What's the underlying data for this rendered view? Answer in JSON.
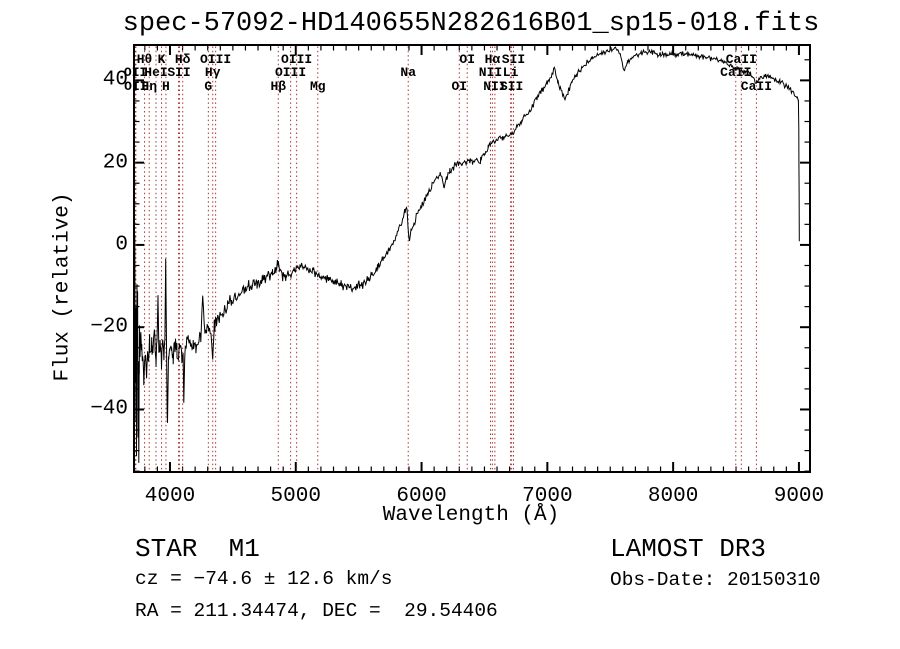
{
  "annotations": {
    "classification": "STAR  M1",
    "survey": "LAMOST DR3",
    "cz": "cz = −74.6 ± 12.6 km/s",
    "obs_date": "Obs-Date: 20150310",
    "ra_dec": "RA = 211.34474, DEC =  29.54406"
  },
  "chart_data": {
    "type": "line",
    "title": "spec-57092-HD140655N282616B01_sp15-018.fits",
    "xlabel": "Wavelength (Å)",
    "ylabel": "Flux (relative)",
    "xlim": [
      3714,
      9088
    ],
    "ylim": [
      -55.2,
      48.6
    ],
    "x_major_ticks": [
      4000,
      5000,
      6000,
      7000,
      8000,
      9000
    ],
    "x_minor_step": 100,
    "y_major_ticks": [
      -40,
      -20,
      0,
      20,
      40
    ],
    "y_tick_labels": [
      "−40",
      "−20",
      "0",
      "20",
      "40"
    ],
    "y_minor_step": 5,
    "grid": false,
    "legend": null,
    "line_color": "#000000",
    "spectral_line_color": "#a83535",
    "spectral_lines": [
      {
        "label": "Hθ",
        "wl": 3798,
        "row": 1
      },
      {
        "label": "K",
        "wl": 3933,
        "row": 1
      },
      {
        "label": "Hδ",
        "wl": 4101,
        "row": 1
      },
      {
        "label": "OIII",
        "wl": 4363,
        "row": 1
      },
      {
        "label": "OIII",
        "wl": 5007,
        "row": 1
      },
      {
        "label": "OI",
        "wl": 6363,
        "row": 1
      },
      {
        "label": "Hα",
        "wl": 6563,
        "row": 1
      },
      {
        "label": "SII",
        "wl": 6731,
        "row": 1
      },
      {
        "label": "CaII",
        "wl": 8542,
        "row": 1
      },
      {
        "label": "OII",
        "wl": 3727,
        "row": 2
      },
      {
        "label": "HeI",
        "wl": 3889,
        "row": 2
      },
      {
        "label": "SII",
        "wl": 4072,
        "row": 2
      },
      {
        "label": "Hγ",
        "wl": 4340,
        "row": 2
      },
      {
        "label": "OIII",
        "wl": 4959,
        "row": 2
      },
      {
        "label": "Na",
        "wl": 5894,
        "row": 2
      },
      {
        "label": "NII",
        "wl": 6548,
        "row": 2
      },
      {
        "label": "Li",
        "wl": 6708,
        "row": 2
      },
      {
        "label": "CaII",
        "wl": 8498,
        "row": 2
      },
      {
        "label": "OII",
        "wl": 3729,
        "row": 3
      },
      {
        "label": "Hη",
        "wl": 3835,
        "row": 3
      },
      {
        "label": "H",
        "wl": 3968,
        "row": 3
      },
      {
        "label": "G",
        "wl": 4305,
        "row": 3
      },
      {
        "label": "Hβ",
        "wl": 4861,
        "row": 3
      },
      {
        "label": "Mg",
        "wl": 5175,
        "row": 3
      },
      {
        "label": "OI",
        "wl": 6300,
        "row": 3
      },
      {
        "label": "NII",
        "wl": 6583,
        "row": 3
      },
      {
        "label": "SII",
        "wl": 6716,
        "row": 3
      },
      {
        "label": "CaII",
        "wl": 8662,
        "row": 3
      }
    ],
    "marker_wavelengths": [
      3726,
      3729,
      3798,
      3835,
      3889,
      3933,
      3968,
      4068,
      4076,
      4101,
      4305,
      4340,
      4363,
      4861,
      4959,
      5007,
      5175,
      5894,
      6300,
      6363,
      6548,
      6563,
      6583,
      6708,
      6716,
      6731,
      8498,
      8542,
      8662
    ],
    "series": [
      {
        "name": "flux",
        "points": [
          [
            3714,
            -5
          ],
          [
            3717,
            -25
          ],
          [
            3720,
            -2
          ],
          [
            3723,
            -30
          ],
          [
            3726,
            -10
          ],
          [
            3729,
            -46
          ],
          [
            3732,
            -18
          ],
          [
            3734,
            -48
          ],
          [
            3737,
            -8
          ],
          [
            3740,
            -30
          ],
          [
            3743,
            -15
          ],
          [
            3746,
            -42
          ],
          [
            3749,
            -20
          ],
          [
            3752,
            -51
          ],
          [
            3755,
            -30
          ],
          [
            3758,
            -22
          ],
          [
            3762,
            -28
          ],
          [
            3768,
            -24
          ],
          [
            3775,
            -29
          ],
          [
            3782,
            -25
          ],
          [
            3790,
            -31
          ],
          [
            3798,
            -27
          ],
          [
            3806,
            -25
          ],
          [
            3814,
            -32
          ],
          [
            3822,
            -26
          ],
          [
            3830,
            -28
          ],
          [
            3838,
            -24
          ],
          [
            3846,
            -27
          ],
          [
            3855,
            -23
          ],
          [
            3863,
            -26
          ],
          [
            3872,
            -21
          ],
          [
            3880,
            -25
          ],
          [
            3889,
            -28
          ],
          [
            3897,
            -24
          ],
          [
            3905,
            -13
          ],
          [
            3913,
            -26
          ],
          [
            3921,
            -23
          ],
          [
            3933,
            -28
          ],
          [
            3942,
            -24
          ],
          [
            3952,
            -26
          ],
          [
            3960,
            -24
          ],
          [
            3966,
            -4
          ],
          [
            3972,
            -24
          ],
          [
            3980,
            -44
          ],
          [
            3988,
            -27
          ],
          [
            3996,
            -24
          ],
          [
            4010,
            -25
          ],
          [
            4025,
            -27
          ],
          [
            4040,
            -24
          ],
          [
            4055,
            -26
          ],
          [
            4068,
            -28
          ],
          [
            4082,
            -25
          ],
          [
            4095,
            -27
          ],
          [
            4104,
            -26
          ],
          [
            4110,
            -38
          ],
          [
            4118,
            -26
          ],
          [
            4130,
            -25
          ],
          [
            4145,
            -23
          ],
          [
            4165,
            -25
          ],
          [
            4185,
            -24
          ],
          [
            4205,
            -25
          ],
          [
            4225,
            -24
          ],
          [
            4245,
            -23
          ],
          [
            4260,
            -13
          ],
          [
            4275,
            -21
          ],
          [
            4290,
            -19.5
          ],
          [
            4305,
            -21
          ],
          [
            4320,
            -20
          ],
          [
            4340,
            -27
          ],
          [
            4352,
            -20
          ],
          [
            4370,
            -19
          ],
          [
            4395,
            -18
          ],
          [
            4425,
            -16.5
          ],
          [
            4455,
            -15
          ],
          [
            4490,
            -13.5
          ],
          [
            4525,
            -12.5
          ],
          [
            4560,
            -11.5
          ],
          [
            4600,
            -10.5
          ],
          [
            4645,
            -9.8
          ],
          [
            4690,
            -9.2
          ],
          [
            4735,
            -8.3
          ],
          [
            4775,
            -7.4
          ],
          [
            4815,
            -7
          ],
          [
            4845,
            -6.6
          ],
          [
            4861,
            -4.2
          ],
          [
            4878,
            -7
          ],
          [
            4900,
            -7.4
          ],
          [
            4923,
            -7.8
          ],
          [
            4950,
            -7.1
          ],
          [
            4985,
            -6.2
          ],
          [
            5020,
            -5.6
          ],
          [
            5058,
            -5.1
          ],
          [
            5095,
            -5.6
          ],
          [
            5135,
            -6.3
          ],
          [
            5175,
            -7.4
          ],
          [
            5215,
            -8.1
          ],
          [
            5260,
            -8.5
          ],
          [
            5310,
            -8.9
          ],
          [
            5360,
            -9.5
          ],
          [
            5410,
            -10.3
          ],
          [
            5460,
            -10.4
          ],
          [
            5510,
            -9.9
          ],
          [
            5560,
            -9
          ],
          [
            5605,
            -7.4
          ],
          [
            5650,
            -5.4
          ],
          [
            5695,
            -3.3
          ],
          [
            5740,
            -1.2
          ],
          [
            5775,
            0.8
          ],
          [
            5808,
            2.8
          ],
          [
            5838,
            5.2
          ],
          [
            5866,
            7.8
          ],
          [
            5884,
            9
          ],
          [
            5900,
            1
          ],
          [
            5916,
            3.6
          ],
          [
            5940,
            5.2
          ],
          [
            5970,
            7.6
          ],
          [
            6005,
            10.2
          ],
          [
            6050,
            12.6
          ],
          [
            6080,
            14.2
          ],
          [
            6114,
            16
          ],
          [
            6148,
            17
          ],
          [
            6178,
            14
          ],
          [
            6200,
            16.5
          ],
          [
            6225,
            17.8
          ],
          [
            6255,
            19
          ],
          [
            6290,
            19.7
          ],
          [
            6325,
            20
          ],
          [
            6365,
            20.3
          ],
          [
            6405,
            20.5
          ],
          [
            6440,
            20.8
          ],
          [
            6470,
            20.6
          ],
          [
            6500,
            21.8
          ],
          [
            6530,
            23.6
          ],
          [
            6563,
            25
          ],
          [
            6600,
            25.5
          ],
          [
            6640,
            26
          ],
          [
            6680,
            26.4
          ],
          [
            6720,
            27
          ],
          [
            6760,
            28.7
          ],
          [
            6800,
            30.2
          ],
          [
            6840,
            32
          ],
          [
            6880,
            33.6
          ],
          [
            6920,
            35.8
          ],
          [
            6958,
            37.6
          ],
          [
            7000,
            39.6
          ],
          [
            7036,
            41.4
          ],
          [
            7058,
            42.8
          ],
          [
            7082,
            39.6
          ],
          [
            7105,
            38
          ],
          [
            7140,
            35.8
          ],
          [
            7165,
            37.5
          ],
          [
            7195,
            39.6
          ],
          [
            7232,
            41.6
          ],
          [
            7274,
            43
          ],
          [
            7315,
            44.4
          ],
          [
            7358,
            45.4
          ],
          [
            7400,
            46.3
          ],
          [
            7448,
            47
          ],
          [
            7498,
            47.4
          ],
          [
            7542,
            47.8
          ],
          [
            7580,
            46.3
          ],
          [
            7608,
            42.3
          ],
          [
            7636,
            44.4
          ],
          [
            7672,
            45.7
          ],
          [
            7710,
            46.2
          ],
          [
            7750,
            46.7
          ],
          [
            7792,
            47
          ],
          [
            7835,
            46.8
          ],
          [
            7875,
            46.2
          ],
          [
            7915,
            46.5
          ],
          [
            7955,
            46.1
          ],
          [
            8000,
            46.3
          ],
          [
            8065,
            46.6
          ],
          [
            8145,
            46.2
          ],
          [
            8225,
            45.8
          ],
          [
            8305,
            45.3
          ],
          [
            8395,
            44.6
          ],
          [
            8465,
            43.6
          ],
          [
            8498,
            42.6
          ],
          [
            8520,
            43
          ],
          [
            8546,
            41.9
          ],
          [
            8580,
            42.2
          ],
          [
            8618,
            41.4
          ],
          [
            8662,
            39.4
          ],
          [
            8688,
            40.8
          ],
          [
            8728,
            41
          ],
          [
            8768,
            40.7
          ],
          [
            8808,
            40.2
          ],
          [
            8848,
            39.8
          ],
          [
            8888,
            38.7
          ],
          [
            8925,
            38.1
          ],
          [
            8958,
            36.7
          ],
          [
            8983,
            35.9
          ],
          [
            8996,
            35.2
          ],
          [
            8999,
            28
          ],
          [
            9001,
            14
          ],
          [
            9003,
            0.8
          ]
        ]
      }
    ],
    "noise_profile": [
      {
        "up_to": 3762,
        "amp": 12
      },
      {
        "up_to": 3802,
        "amp": 6
      },
      {
        "up_to": 4100,
        "amp": 3.2
      },
      {
        "up_to": 4480,
        "amp": 2.4
      },
      {
        "up_to": 5000,
        "amp": 1.7
      },
      {
        "up_to": 5740,
        "amp": 1.4
      },
      {
        "up_to": 6480,
        "amp": 1.1
      },
      {
        "up_to": 7320,
        "amp": 0.95
      },
      {
        "up_to": 8995,
        "amp": 0.75
      },
      {
        "up_to": 9005,
        "amp": 0.3
      }
    ]
  }
}
